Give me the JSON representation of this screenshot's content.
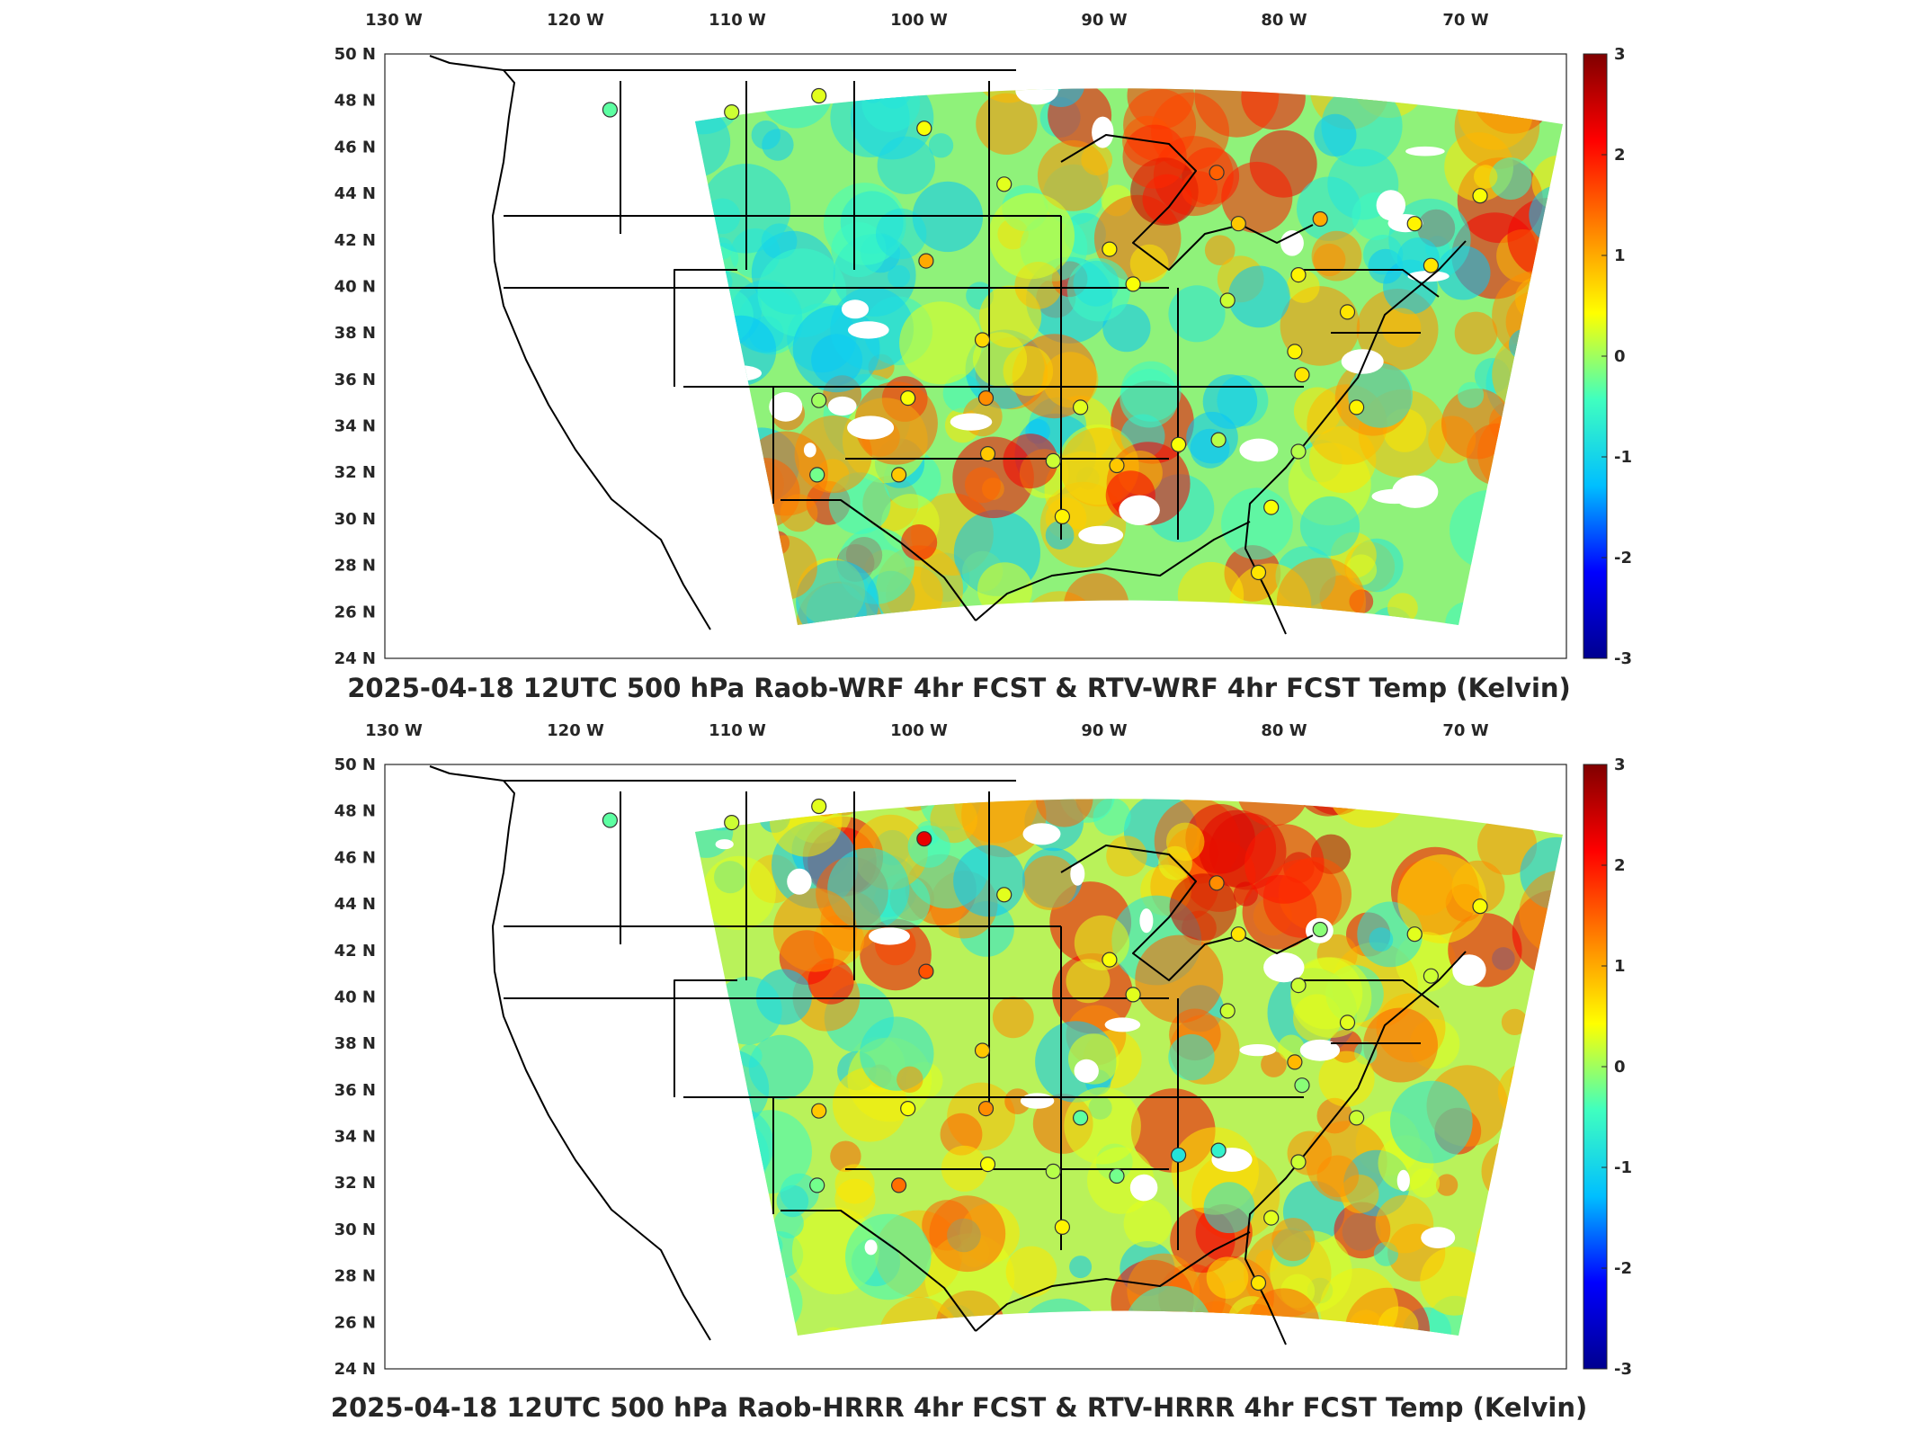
{
  "lon_labels": [
    "130  W",
    "120  W",
    "110  W",
    "100  W",
    "90  W",
    "80  W",
    "70  W"
  ],
  "lat_labels": [
    "50  N",
    "48  N",
    "46  N",
    "44  N",
    "42  N",
    "40  N",
    "38  N",
    "36  N",
    "34  N",
    "32  N",
    "30  N",
    "28  N",
    "26  N",
    "24  N"
  ],
  "colorbar": {
    "ticks": [
      "3",
      "2",
      "1",
      "0",
      "-1",
      "-2",
      "-3"
    ],
    "min": -3,
    "max": 3,
    "colors": [
      "#00008f",
      "#0000ff",
      "#00bfff",
      "#40ffbf",
      "#ffff00",
      "#ff8000",
      "#ff0000",
      "#800000"
    ]
  },
  "panels": [
    {
      "title": "2025-04-18 12UTC 500 hPa Raob-WRF 4hr FCST & RTV-WRF 4hr FCST Temp (Kelvin)",
      "stations": [
        {
          "lon": -118.1,
          "lat": 47.6,
          "v": -0.3
        },
        {
          "lon": -111.4,
          "lat": 47.5,
          "v": 0.2
        },
        {
          "lon": -106.6,
          "lat": 48.2,
          "v": 0.3
        },
        {
          "lon": -100.8,
          "lat": 46.8,
          "v": 0.4
        },
        {
          "lon": -96.4,
          "lat": 44.4,
          "v": 0.3
        },
        {
          "lon": -100.7,
          "lat": 41.1,
          "v": 1.0
        },
        {
          "lon": -97.6,
          "lat": 37.7,
          "v": 0.7
        },
        {
          "lon": -101.7,
          "lat": 35.2,
          "v": 0.4
        },
        {
          "lon": -97.4,
          "lat": 35.2,
          "v": 1.2
        },
        {
          "lon": -106.6,
          "lat": 35.1,
          "v": 0.0
        },
        {
          "lon": -106.7,
          "lat": 31.9,
          "v": -0.2
        },
        {
          "lon": -102.2,
          "lat": 31.9,
          "v": 0.8
        },
        {
          "lon": -97.3,
          "lat": 32.8,
          "v": 0.8
        },
        {
          "lon": -93.7,
          "lat": 32.5,
          "v": 0.2
        },
        {
          "lon": -92.2,
          "lat": 34.8,
          "v": 0.3
        },
        {
          "lon": -90.2,
          "lat": 32.3,
          "v": 0.8
        },
        {
          "lon": -86.8,
          "lat": 33.2,
          "v": 0.4
        },
        {
          "lon": -84.6,
          "lat": 33.4,
          "v": 0.1
        },
        {
          "lon": -93.2,
          "lat": 30.1,
          "v": 0.5
        },
        {
          "lon": -81.7,
          "lat": 30.5,
          "v": 0.4
        },
        {
          "lon": -82.4,
          "lat": 27.7,
          "v": 0.6
        },
        {
          "lon": -80.2,
          "lat": 32.9,
          "v": 0.1
        },
        {
          "lon": -77.0,
          "lat": 34.8,
          "v": 0.5
        },
        {
          "lon": -80.0,
          "lat": 36.2,
          "v": 0.6
        },
        {
          "lon": -80.4,
          "lat": 37.2,
          "v": 0.5
        },
        {
          "lon": -77.5,
          "lat": 38.9,
          "v": 0.6
        },
        {
          "lon": -80.2,
          "lat": 40.5,
          "v": 0.5
        },
        {
          "lon": -84.1,
          "lat": 39.4,
          "v": 0.2
        },
        {
          "lon": -89.3,
          "lat": 40.1,
          "v": 0.4
        },
        {
          "lon": -90.6,
          "lat": 41.6,
          "v": 0.5
        },
        {
          "lon": -83.5,
          "lat": 42.7,
          "v": 0.8
        },
        {
          "lon": -84.7,
          "lat": 44.9,
          "v": 1.5
        },
        {
          "lon": -79.0,
          "lat": 42.9,
          "v": 1.0
        },
        {
          "lon": -73.8,
          "lat": 42.7,
          "v": 0.5
        },
        {
          "lon": -72.9,
          "lat": 40.9,
          "v": 0.6
        },
        {
          "lon": -70.2,
          "lat": 43.9,
          "v": 0.4
        }
      ]
    },
    {
      "title": "2025-04-18 12UTC 500 hPa Raob-HRRR 4hr FCST & RTV-HRRR 4hr FCST Temp (Kelvin)",
      "stations": [
        {
          "lon": -118.1,
          "lat": 47.6,
          "v": -0.3
        },
        {
          "lon": -111.4,
          "lat": 47.5,
          "v": 0.2
        },
        {
          "lon": -106.6,
          "lat": 48.2,
          "v": 0.3
        },
        {
          "lon": -100.8,
          "lat": 46.8,
          "v": 2.3
        },
        {
          "lon": -96.4,
          "lat": 44.4,
          "v": 0.3
        },
        {
          "lon": -100.7,
          "lat": 41.1,
          "v": 1.6
        },
        {
          "lon": -97.6,
          "lat": 37.7,
          "v": 0.8
        },
        {
          "lon": -101.7,
          "lat": 35.2,
          "v": 0.4
        },
        {
          "lon": -97.4,
          "lat": 35.2,
          "v": 1.2
        },
        {
          "lon": -106.6,
          "lat": 35.1,
          "v": 0.8
        },
        {
          "lon": -106.7,
          "lat": 31.9,
          "v": -0.2
        },
        {
          "lon": -102.2,
          "lat": 31.9,
          "v": 1.4
        },
        {
          "lon": -97.3,
          "lat": 32.8,
          "v": 0.4
        },
        {
          "lon": -93.7,
          "lat": 32.5,
          "v": 0.1
        },
        {
          "lon": -92.2,
          "lat": 34.8,
          "v": -0.3
        },
        {
          "lon": -90.2,
          "lat": 32.3,
          "v": -0.2
        },
        {
          "lon": -86.8,
          "lat": 33.2,
          "v": -0.8
        },
        {
          "lon": -84.6,
          "lat": 33.4,
          "v": -0.6
        },
        {
          "lon": -93.2,
          "lat": 30.1,
          "v": 0.5
        },
        {
          "lon": -81.7,
          "lat": 30.5,
          "v": 0.3
        },
        {
          "lon": -82.4,
          "lat": 27.7,
          "v": 0.6
        },
        {
          "lon": -80.2,
          "lat": 32.9,
          "v": 0.2
        },
        {
          "lon": -77.0,
          "lat": 34.8,
          "v": 0.2
        },
        {
          "lon": -80.0,
          "lat": 36.2,
          "v": -0.1
        },
        {
          "lon": -80.4,
          "lat": 37.2,
          "v": 0.9
        },
        {
          "lon": -77.5,
          "lat": 38.9,
          "v": 0.3
        },
        {
          "lon": -80.2,
          "lat": 40.5,
          "v": 0.2
        },
        {
          "lon": -84.1,
          "lat": 39.4,
          "v": 0.2
        },
        {
          "lon": -89.3,
          "lat": 40.1,
          "v": 0.3
        },
        {
          "lon": -90.6,
          "lat": 41.6,
          "v": 0.4
        },
        {
          "lon": -83.5,
          "lat": 42.7,
          "v": 0.6
        },
        {
          "lon": -84.7,
          "lat": 44.9,
          "v": 1.2
        },
        {
          "lon": -79.0,
          "lat": 42.9,
          "v": -0.1
        },
        {
          "lon": -73.8,
          "lat": 42.7,
          "v": 0.3
        },
        {
          "lon": -72.9,
          "lat": 40.9,
          "v": 0.2
        },
        {
          "lon": -70.2,
          "lat": 43.9,
          "v": 0.4
        }
      ]
    }
  ]
}
